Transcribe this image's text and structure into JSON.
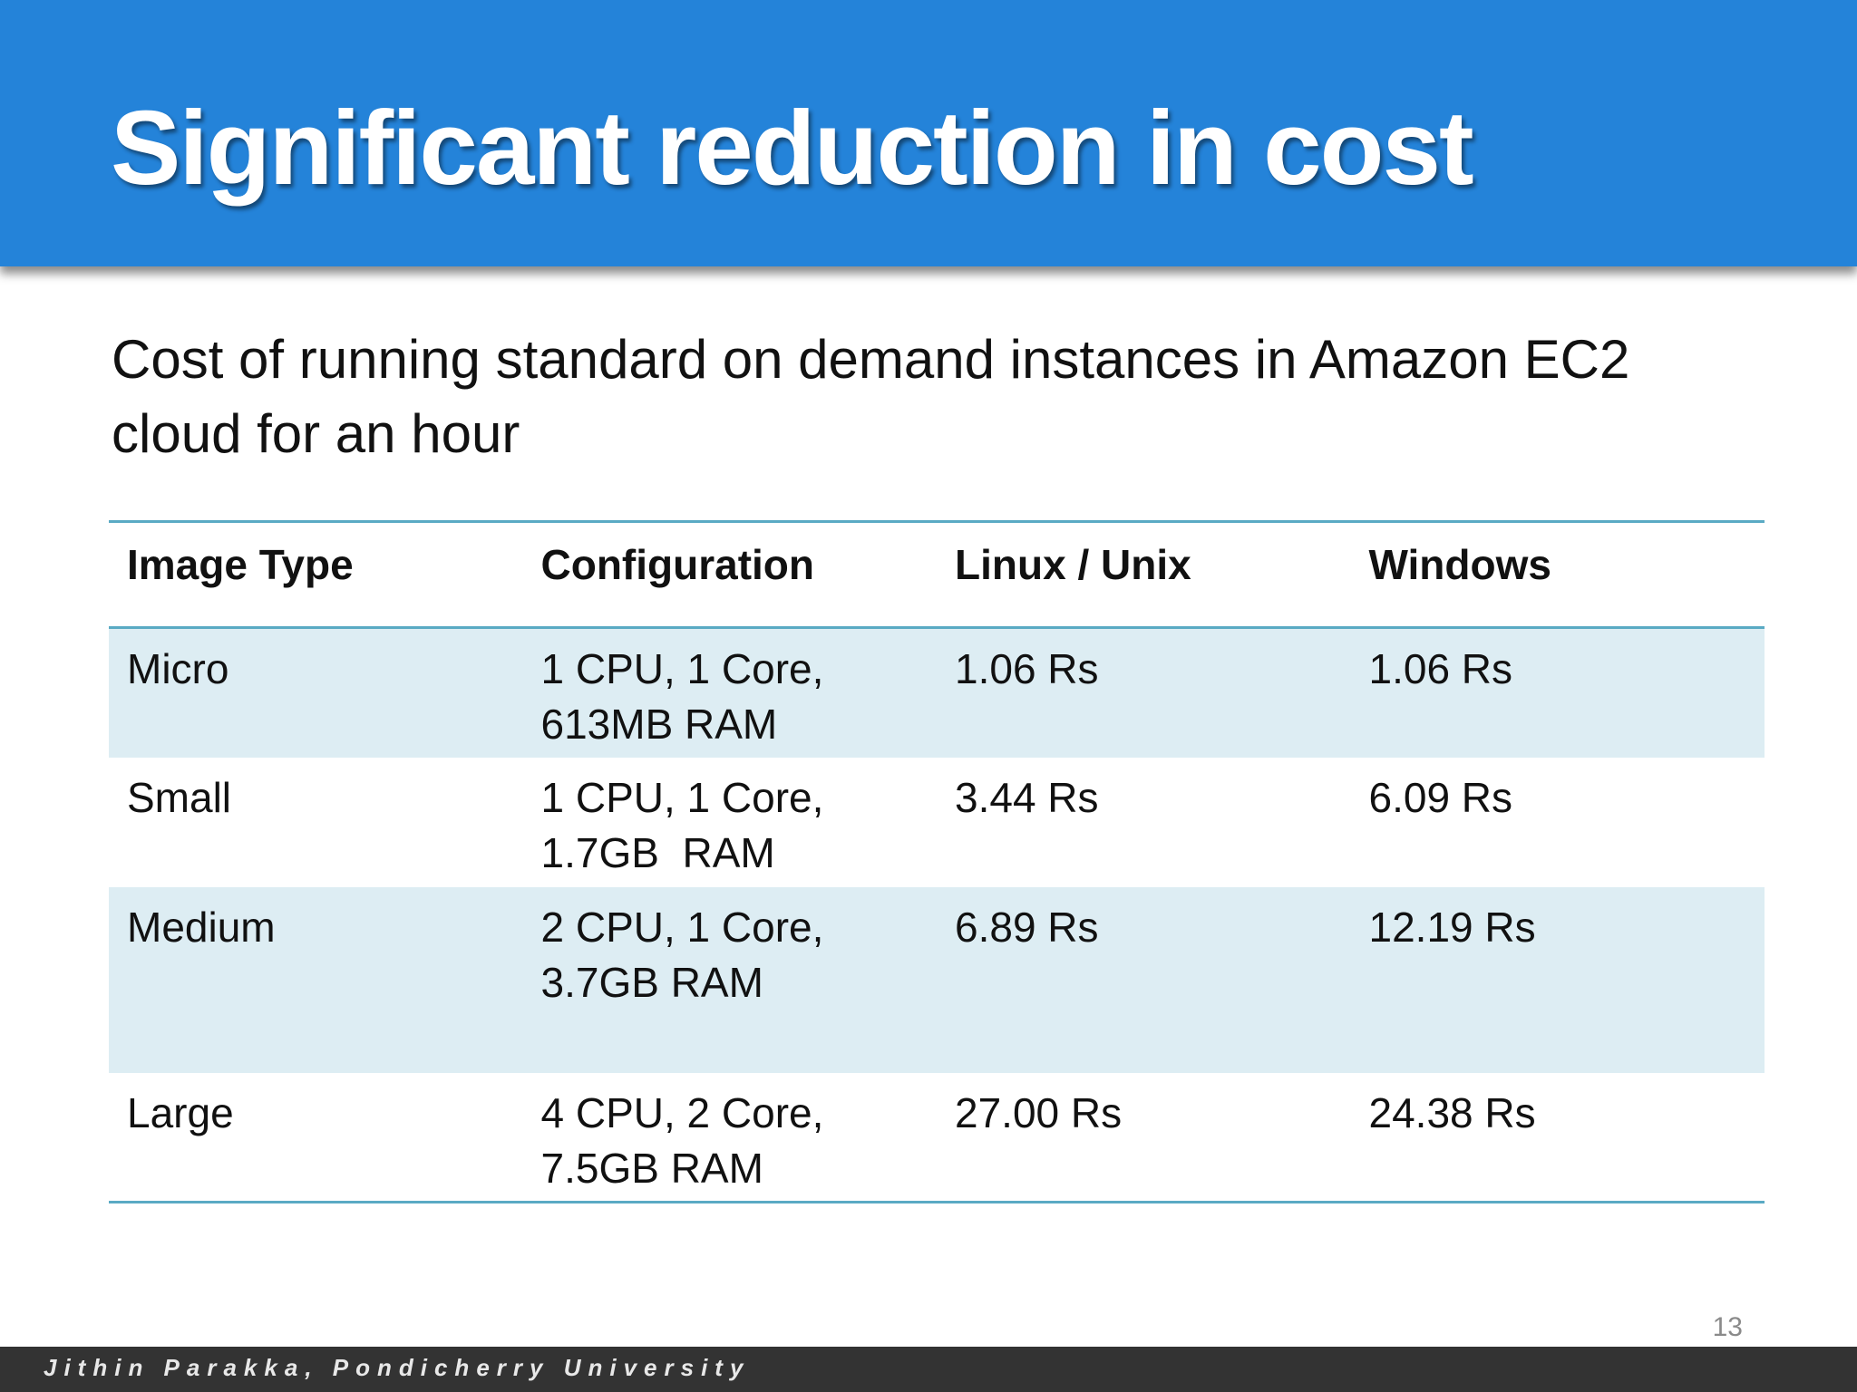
{
  "slide": {
    "title": "Significant reduction in cost",
    "subtitle": "Cost of running standard on demand instances in Amazon EC2 cloud for an hour",
    "page_number": "13",
    "footer": "Jithin Parakka, Pondicherry University"
  },
  "table": {
    "headers": [
      "Image Type",
      "Configuration",
      "Linux / Unix",
      "Windows"
    ],
    "rows": [
      {
        "type": "Micro",
        "config_line1": "1 CPU, 1 Core,",
        "config_line2": "613MB RAM",
        "linux": "1.06 Rs",
        "windows": "1.06 Rs"
      },
      {
        "type": "Small",
        "config_line1": "1 CPU, 1 Core,",
        "config_line2": "1.7GB  RAM",
        "linux": "3.44 Rs",
        "windows": "6.09 Rs"
      },
      {
        "type": "Medium",
        "config_line1": "2 CPU, 1 Core,",
        "config_line2": "3.7GB RAM",
        "linux": "6.89 Rs",
        "windows": "12.19 Rs"
      },
      {
        "type": "Large",
        "config_line1": "4 CPU, 2 Core,",
        "config_line2": "7.5GB RAM",
        "linux": "27.00 Rs",
        "windows": "24.38 Rs"
      }
    ]
  },
  "colors": {
    "title_bar": "#2483d9",
    "row_band": "#ddedf3",
    "rule": "#5aaac4",
    "footer_bar": "#333333"
  }
}
